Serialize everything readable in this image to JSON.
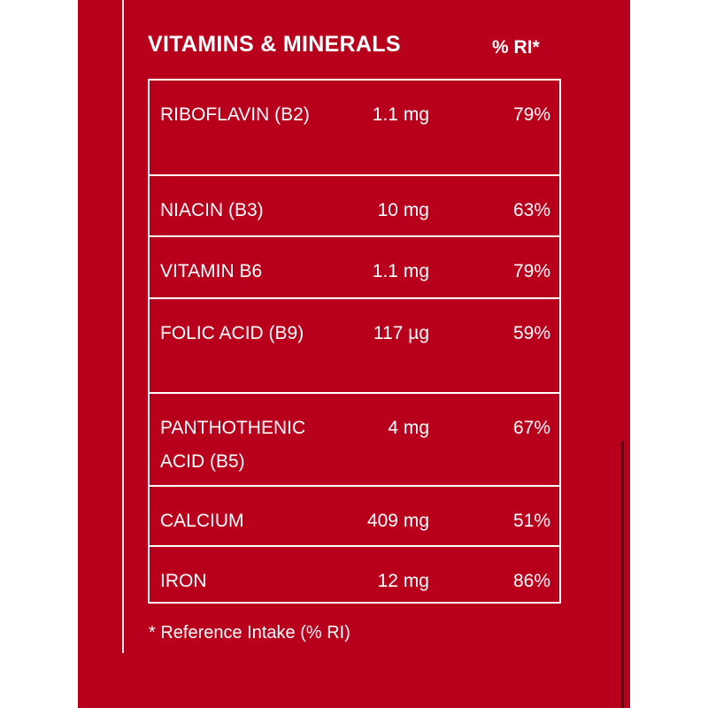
{
  "header": {
    "title": "VITAMINS & MINERALS",
    "ri_label": "% RI*"
  },
  "rows": [
    {
      "name": "RIBOFLAVIN (B2)",
      "amount": "1.1 mg",
      "ri": "79%"
    },
    {
      "name": "NIACIN (B3)",
      "amount": "10 mg",
      "ri": "63%"
    },
    {
      "name": "VITAMIN B6",
      "amount": "1.1 mg",
      "ri": "79%"
    },
    {
      "name": "FOLIC ACID (B9)",
      "amount": "117 µg",
      "ri": "59%"
    },
    {
      "name": "PANTHOTHENIC ACID (B5)",
      "amount": "4 mg",
      "ri": "67%"
    },
    {
      "name": "CALCIUM",
      "amount": "409 mg",
      "ri": "51%"
    },
    {
      "name": "IRON",
      "amount": "12 mg",
      "ri": "86%"
    }
  ],
  "footnote": "* Reference Intake (% RI)",
  "colors": {
    "background": "#b8001c",
    "text": "#ffffff"
  }
}
